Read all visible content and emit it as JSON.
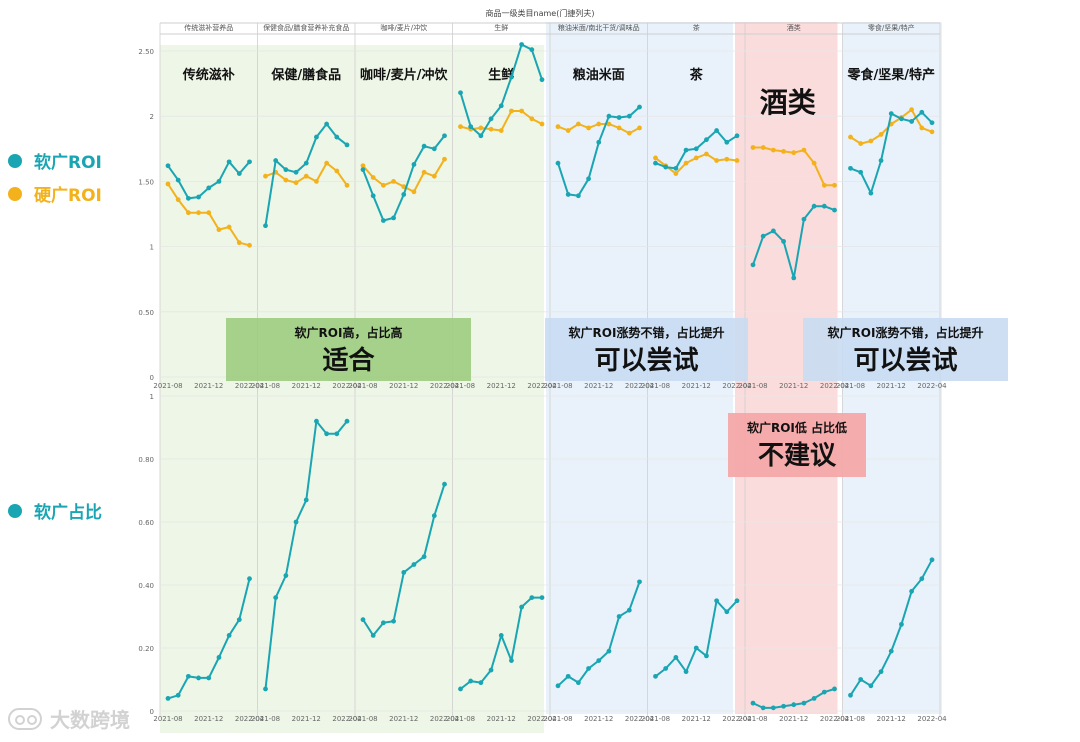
{
  "header": {
    "title": "商品一级类目name(门捷列夫)"
  },
  "colors": {
    "soft_roi": "#1aa5b3",
    "hard_roi": "#f3b21c",
    "band_green": "#e8f3df",
    "band_blue": "#e2edf8",
    "band_red": "#f9d0d0",
    "box_green": "#9dcd7f",
    "box_blue": "#c9dcf2",
    "box_red": "#f4a8a8"
  },
  "legend": {
    "soft_roi": "软广ROI",
    "hard_roi": "硬广ROI",
    "soft_share": "软广占比"
  },
  "chart_data": {
    "type": "line",
    "facet_header": [
      "传统滋补营养品",
      "保健食品/膳食营养补充食品",
      "咖啡/麦片/冲饮",
      "生鲜",
      "粮油米面/南北干货/调味品",
      "茶",
      "酒类",
      "零食/坚果/特产"
    ],
    "facet_labels": [
      "传统滋补",
      "保健/膳食品",
      "咖啡/麦片/冲饮",
      "生鲜",
      "粮油米面",
      "茶",
      "酒类",
      "零食/坚果/特产"
    ],
    "x_ticks": [
      "2021-08",
      "2021-12",
      "2022-04"
    ],
    "top_panel": {
      "ylim": [
        0,
        2.6
      ],
      "y_ticks": [
        "0",
        "0.50",
        "1",
        "1.50",
        "2",
        "2.50"
      ],
      "series": [
        {
          "name": "软广ROI",
          "values": [
            [
              1.62,
              1.51,
              1.37,
              1.38,
              1.45,
              1.5,
              1.65,
              1.56,
              1.65
            ],
            [
              1.16,
              1.66,
              1.59,
              1.57,
              1.64,
              1.84,
              1.94,
              1.84,
              1.78
            ],
            [
              1.59,
              1.39,
              1.2,
              1.22,
              1.4,
              1.63,
              1.77,
              1.75,
              1.85
            ],
            [
              2.18,
              1.92,
              1.85,
              1.98,
              2.08,
              2.3,
              2.55,
              2.51,
              2.28
            ],
            [
              1.64,
              1.4,
              1.39,
              1.52,
              1.8,
              2.0,
              1.99,
              2.0,
              2.07
            ],
            [
              1.64,
              1.61,
              1.6,
              1.74,
              1.75,
              1.82,
              1.89,
              1.8,
              1.85
            ],
            [
              0.86,
              1.08,
              1.12,
              1.04,
              0.76,
              1.21,
              1.31,
              1.31,
              1.28
            ],
            [
              1.6,
              1.57,
              1.41,
              1.66,
              2.02,
              1.98,
              1.96,
              2.03,
              1.95
            ]
          ]
        },
        {
          "name": "硬广ROI",
          "values": [
            [
              1.48,
              1.36,
              1.26,
              1.26,
              1.26,
              1.13,
              1.15,
              1.03,
              1.01
            ],
            [
              1.54,
              1.57,
              1.51,
              1.49,
              1.54,
              1.5,
              1.64,
              1.58,
              1.47
            ],
            [
              1.62,
              1.53,
              1.47,
              1.5,
              1.46,
              1.42,
              1.57,
              1.54,
              1.67
            ],
            [
              1.92,
              1.9,
              1.91,
              1.9,
              1.89,
              2.04,
              2.04,
              1.98,
              1.94
            ],
            [
              1.92,
              1.89,
              1.94,
              1.91,
              1.94,
              1.94,
              1.91,
              1.87,
              1.91
            ],
            [
              1.68,
              1.62,
              1.56,
              1.64,
              1.68,
              1.71,
              1.66,
              1.67,
              1.66
            ],
            [
              1.76,
              1.76,
              1.74,
              1.73,
              1.72,
              1.74,
              1.64,
              1.47,
              1.47
            ],
            [
              1.84,
              1.79,
              1.81,
              1.86,
              1.94,
              1.99,
              2.05,
              1.91,
              1.88
            ]
          ]
        }
      ]
    },
    "bottom_panel": {
      "ylim": [
        0,
        1
      ],
      "y_ticks": [
        "0",
        "0.20",
        "0.40",
        "0.60",
        "0.80",
        "1"
      ],
      "series": [
        {
          "name": "软广占比",
          "values": [
            [
              0.04,
              0.05,
              0.11,
              0.105,
              0.105,
              0.17,
              0.24,
              0.29,
              0.42
            ],
            [
              0.07,
              0.36,
              0.43,
              0.6,
              0.67,
              0.92,
              0.88,
              0.88,
              0.92
            ],
            [
              0.29,
              0.24,
              0.28,
              0.285,
              0.44,
              0.465,
              0.49,
              0.62,
              0.72
            ],
            [
              0.07,
              0.095,
              0.09,
              0.13,
              0.24,
              0.16,
              0.33,
              0.36,
              0.36
            ],
            [
              0.08,
              0.11,
              0.09,
              0.135,
              0.16,
              0.19,
              0.3,
              0.32,
              0.41
            ],
            [
              0.11,
              0.135,
              0.17,
              0.125,
              0.2,
              0.175,
              0.35,
              0.315,
              0.35
            ],
            [
              0.025,
              0.01,
              0.01,
              0.015,
              0.02,
              0.025,
              0.04,
              0.06,
              0.07
            ],
            [
              0.05,
              0.1,
              0.08,
              0.125,
              0.19,
              0.275,
              0.38,
              0.42,
              0.48
            ]
          ]
        }
      ]
    },
    "annotations": [
      {
        "line1": "软广ROI高，占比高",
        "line2": "适合",
        "style": "green"
      },
      {
        "line1": "软广ROI涨势不错，占比提升",
        "line2": "可以尝试",
        "style": "blue"
      },
      {
        "line1": "软广ROI涨势不错，占比提升",
        "line2": "可以尝试",
        "style": "blue"
      },
      {
        "line1": "软广ROI低 占比低",
        "line2": "不建议",
        "style": "red"
      }
    ]
  },
  "watermark": {
    "text": "大数跨境"
  }
}
